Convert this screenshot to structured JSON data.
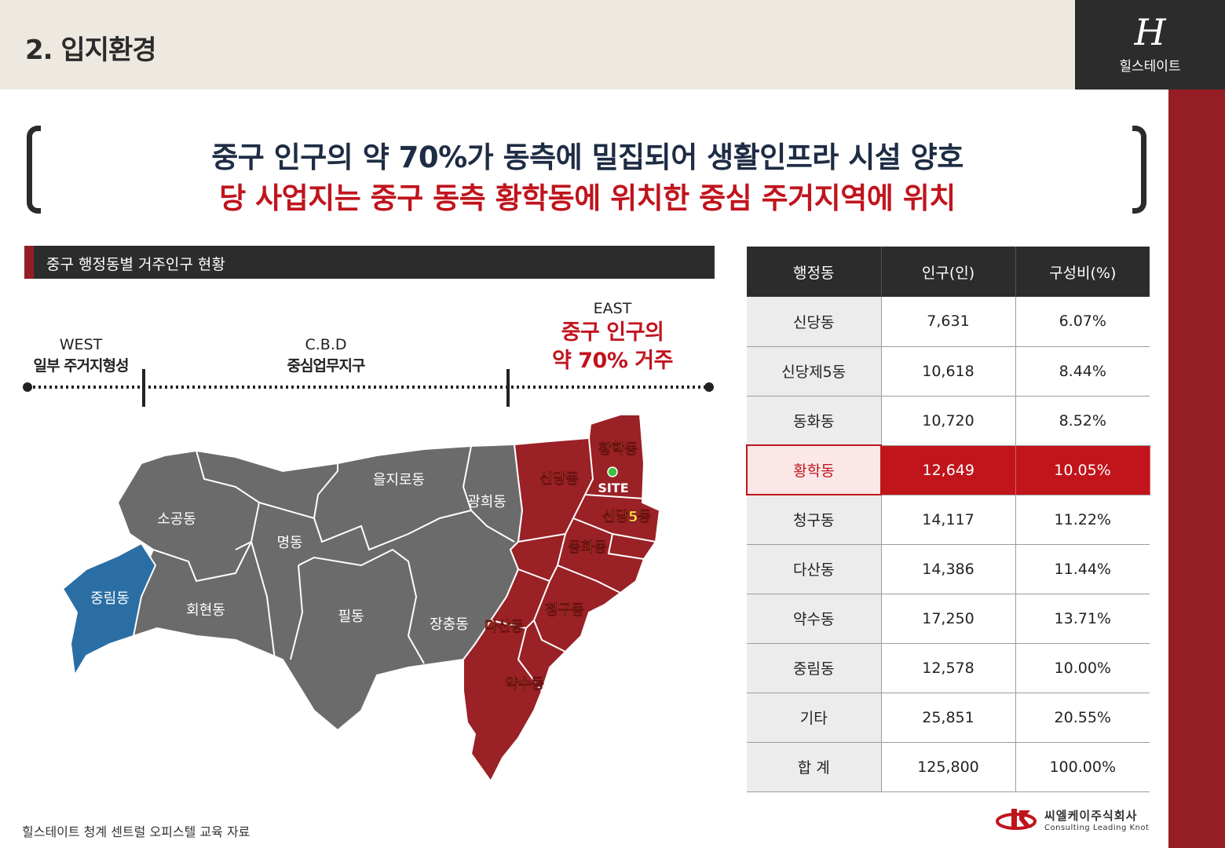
{
  "header": {
    "title": "2. 입지환경"
  },
  "brand": {
    "logo_mark": "H",
    "logo_text": "힐스테이트"
  },
  "headline": {
    "line1": "중구 인구의 약 70%가 동측에 밀집되어 생활인프라 시설 양호",
    "line2": "당 사업지는 중구 동측 황학동에 위치한 중심 주거지역에 위치"
  },
  "section": {
    "title": "중구 행정동별 거주인구 현황"
  },
  "zones": {
    "west_en": "WEST",
    "west_kr": "일부 주거지형성",
    "cbd_en": "C.B.D",
    "cbd_kr": "중심업무지구",
    "east_en": "EAST",
    "east_kr_1": "중구 인구의",
    "east_kr_2": "약 70% 거주"
  },
  "map": {
    "labels": {
      "sogong": "소공동",
      "euljiro": "을지로동",
      "gwanghui": "광희동",
      "myeong": "명동",
      "junglim": "중림동",
      "hoehyeon": "회현동",
      "pil": "필동",
      "jangchung": "장충동",
      "sindang": "신당동",
      "hwanghak": "황학동",
      "site": "SITE",
      "sindang5": "신당5동",
      "donghwa": "동화동",
      "cheonggu": "청구동",
      "dasan": "다산동",
      "yaksu": "약수동"
    },
    "colors": {
      "gray": "#6b6b6b",
      "red": "#9a2126",
      "blue": "#2a6ea4",
      "label_yellow": "#ffe94a"
    }
  },
  "table": {
    "headers": [
      "행정동",
      "인구(인)",
      "구성비(%)"
    ],
    "rows": [
      {
        "name": "신당동",
        "pop": "7,631",
        "pct": "6.07%"
      },
      {
        "name": "신당제5동",
        "pop": "10,618",
        "pct": "8.44%"
      },
      {
        "name": "동화동",
        "pop": "10,720",
        "pct": "8.52%"
      },
      {
        "name": "황학동",
        "pop": "12,649",
        "pct": "10.05%"
      },
      {
        "name": "청구동",
        "pop": "14,117",
        "pct": "11.22%"
      },
      {
        "name": "다산동",
        "pop": "14,386",
        "pct": "11.44%"
      },
      {
        "name": "약수동",
        "pop": "17,250",
        "pct": "13.71%"
      },
      {
        "name": "중림동",
        "pop": "12,578",
        "pct": "10.00%"
      },
      {
        "name": "기타",
        "pop": "25,851",
        "pct": "20.55%"
      },
      {
        "name": "합 계",
        "pop": "125,800",
        "pct": "100.00%"
      }
    ]
  },
  "footer": {
    "text": "힐스테이트 청계 센트럴 오피스텔 교육 자료"
  },
  "company": {
    "name": "씨엘케이주식회사",
    "tagline": "Consulting Leading Knot"
  }
}
